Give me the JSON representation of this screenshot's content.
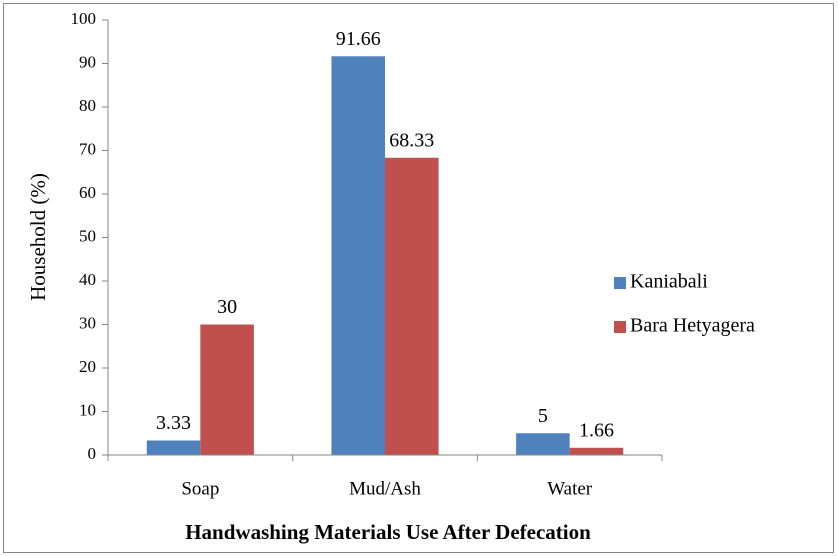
{
  "chart_data": {
    "type": "bar",
    "xlabel": "Handwashing Materials Use After Defecation",
    "ylabel": "Household (%)",
    "categories": [
      "Soap",
      "Mud/Ash",
      "Water"
    ],
    "series": [
      {
        "name": "Kaniabali",
        "color": "#4f81bd",
        "values": [
          3.33,
          91.66,
          5
        ]
      },
      {
        "name": "Bara Hetyagera",
        "color": "#c0504d",
        "values": [
          30,
          68.33,
          1.66
        ]
      }
    ],
    "ylim": [
      0,
      100
    ],
    "yticks": [
      0,
      10,
      20,
      30,
      40,
      50,
      60,
      70,
      80,
      90,
      100
    ],
    "grid": false,
    "legend": "right",
    "data_labels": true
  }
}
